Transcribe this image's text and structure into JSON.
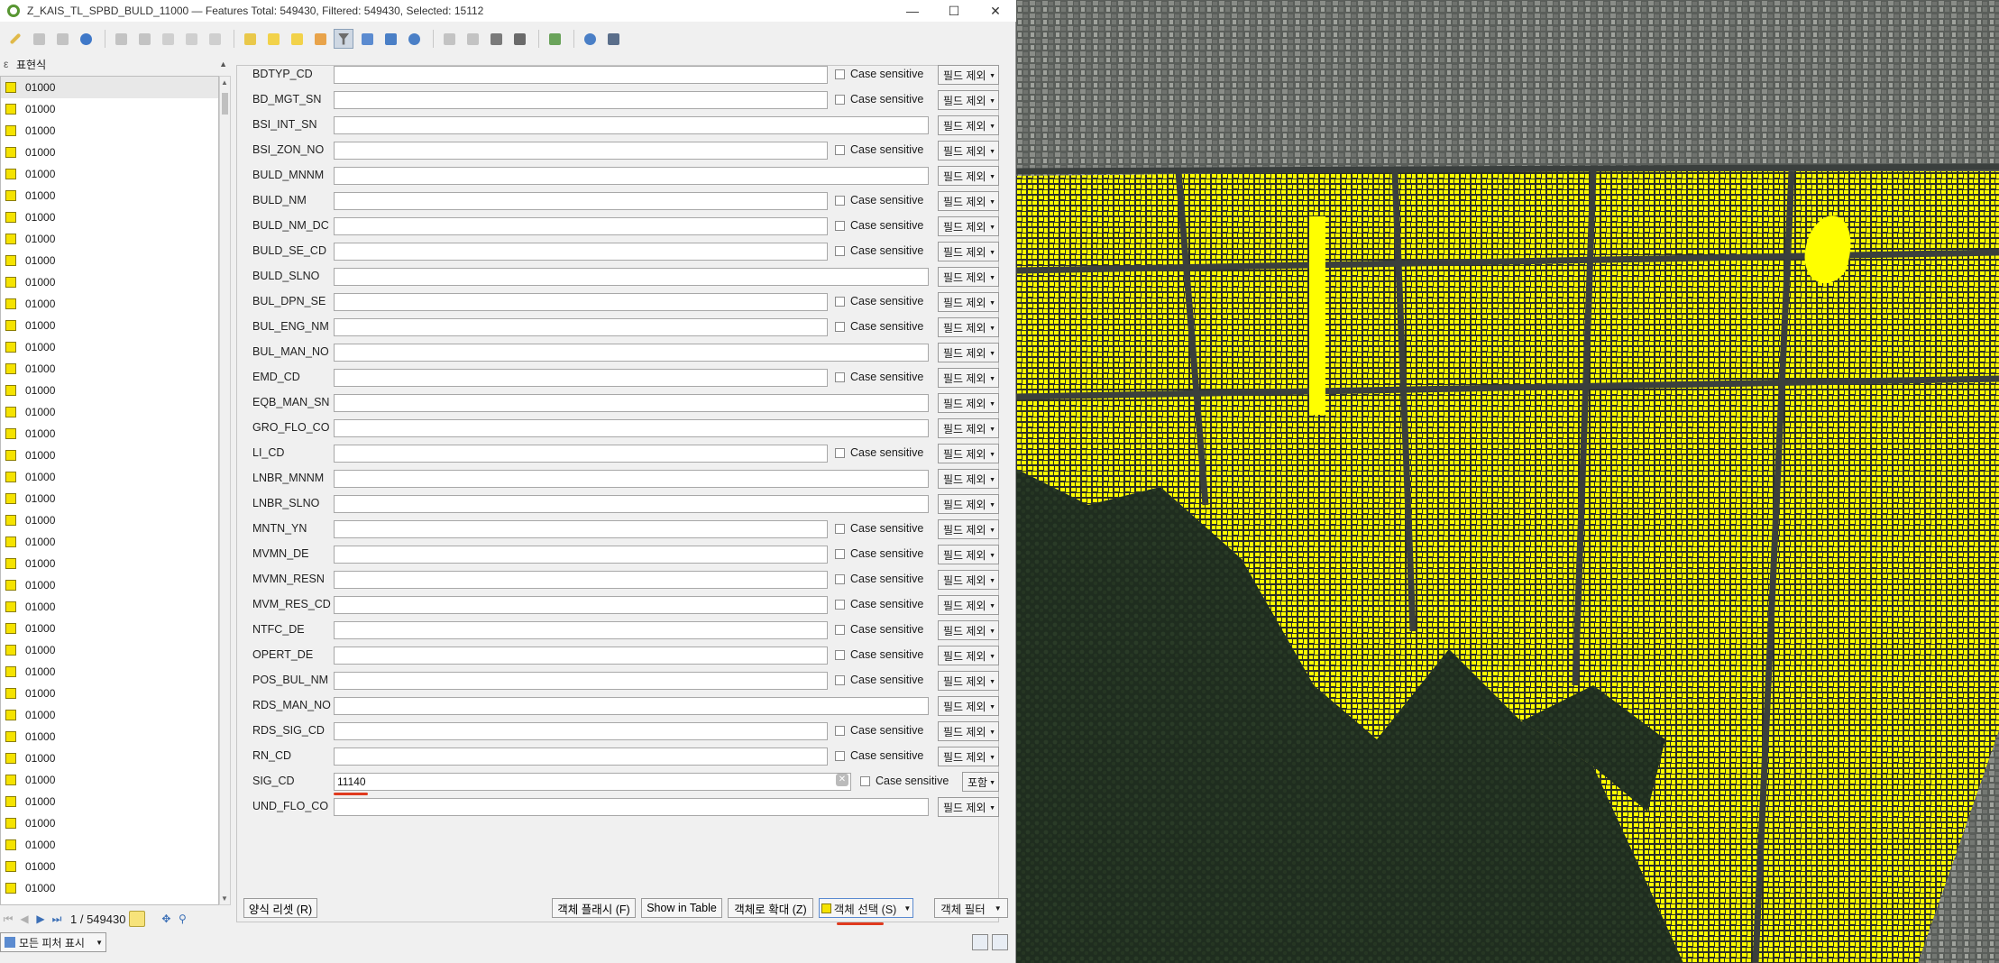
{
  "window": {
    "title": "Z_KAIS_TL_SPBD_BULD_11000 — Features Total: 549430, Filtered: 549430, Selected: 15112",
    "minimize": "—",
    "maximize": "☐",
    "close": "✕"
  },
  "list": {
    "header": "표현식",
    "items": [
      "01000",
      "01000",
      "01000",
      "01000",
      "01000",
      "01000",
      "01000",
      "01000",
      "01000",
      "01000",
      "01000",
      "01000",
      "01000",
      "01000",
      "01000",
      "01000",
      "01000",
      "01000",
      "01000",
      "01000",
      "01000",
      "01000",
      "01000",
      "01000",
      "01000",
      "01000",
      "01000",
      "01000",
      "01000",
      "01000",
      "01000",
      "01000",
      "01000",
      "01000",
      "01000",
      "01000",
      "01000",
      "01000"
    ],
    "nav_counter": "1 / 549430",
    "show_all": "모든 피처 표시"
  },
  "form": {
    "case_label": "Case sensitive",
    "exclude_label": "필드 제외",
    "include_label": "포함",
    "fields": [
      {
        "label": "BDTYP_CD",
        "value": "",
        "case": true,
        "btn": "exclude"
      },
      {
        "label": "BD_MGT_SN",
        "value": "",
        "case": true,
        "btn": "exclude"
      },
      {
        "label": "BSI_INT_SN",
        "value": "",
        "case": false,
        "btn": "exclude"
      },
      {
        "label": "BSI_ZON_NO",
        "value": "",
        "case": true,
        "btn": "exclude"
      },
      {
        "label": "BULD_MNNM",
        "value": "",
        "case": false,
        "btn": "exclude"
      },
      {
        "label": "BULD_NM",
        "value": "",
        "case": true,
        "btn": "exclude"
      },
      {
        "label": "BULD_NM_DC",
        "value": "",
        "case": true,
        "btn": "exclude"
      },
      {
        "label": "BULD_SE_CD",
        "value": "",
        "case": true,
        "btn": "exclude"
      },
      {
        "label": "BULD_SLNO",
        "value": "",
        "case": false,
        "btn": "exclude"
      },
      {
        "label": "BUL_DPN_SE",
        "value": "",
        "case": true,
        "btn": "exclude"
      },
      {
        "label": "BUL_ENG_NM",
        "value": "",
        "case": true,
        "btn": "exclude"
      },
      {
        "label": "BUL_MAN_NO",
        "value": "",
        "case": false,
        "btn": "exclude"
      },
      {
        "label": "EMD_CD",
        "value": "",
        "case": true,
        "btn": "exclude"
      },
      {
        "label": "EQB_MAN_SN",
        "value": "",
        "case": false,
        "btn": "exclude"
      },
      {
        "label": "GRO_FLO_CO",
        "value": "",
        "case": false,
        "btn": "exclude"
      },
      {
        "label": "LI_CD",
        "value": "",
        "case": true,
        "btn": "exclude"
      },
      {
        "label": "LNBR_MNNM",
        "value": "",
        "case": false,
        "btn": "exclude"
      },
      {
        "label": "LNBR_SLNO",
        "value": "",
        "case": false,
        "btn": "exclude"
      },
      {
        "label": "MNTN_YN",
        "value": "",
        "case": true,
        "btn": "exclude"
      },
      {
        "label": "MVMN_DE",
        "value": "",
        "case": true,
        "btn": "exclude"
      },
      {
        "label": "MVMN_RESN",
        "value": "",
        "case": true,
        "btn": "exclude"
      },
      {
        "label": "MVM_RES_CD",
        "value": "",
        "case": true,
        "btn": "exclude"
      },
      {
        "label": "NTFC_DE",
        "value": "",
        "case": true,
        "btn": "exclude"
      },
      {
        "label": "OPERT_DE",
        "value": "",
        "case": true,
        "btn": "exclude"
      },
      {
        "label": "POS_BUL_NM",
        "value": "",
        "case": true,
        "btn": "exclude"
      },
      {
        "label": "RDS_MAN_NO",
        "value": "",
        "case": false,
        "btn": "exclude"
      },
      {
        "label": "RDS_SIG_CD",
        "value": "",
        "case": true,
        "btn": "exclude"
      },
      {
        "label": "RN_CD",
        "value": "",
        "case": true,
        "btn": "exclude"
      },
      {
        "label": "SIG_CD",
        "value": "11140",
        "case": true,
        "btn": "include"
      },
      {
        "label": "UND_FLO_CO",
        "value": "",
        "case": false,
        "btn": "exclude"
      }
    ]
  },
  "buttons": {
    "reset": "양식 리셋 (R)",
    "flash": "객체 플래시 (F)",
    "show_in_table": "Show in Table",
    "zoom": "객체로 확대 (Z)",
    "select": "객체 선택 (S)",
    "filter": "객체 필터"
  },
  "colors": {
    "selection": "#ffff00",
    "accent_underline": "#e03a1e"
  }
}
